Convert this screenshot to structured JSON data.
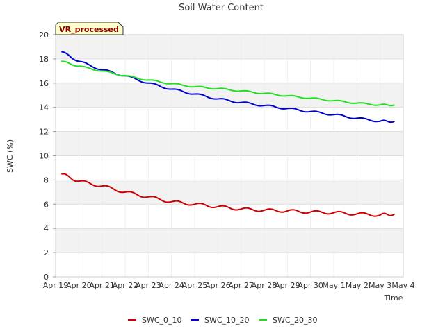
{
  "chart_data": {
    "type": "line",
    "title": "Soil Water Content",
    "xlabel": "Time",
    "ylabel": "SWC (%)",
    "badge": "VR_processed",
    "xlim": [
      "Apr 19",
      "May 4"
    ],
    "ylim": [
      0,
      20
    ],
    "yticks": [
      0,
      2,
      4,
      6,
      8,
      10,
      12,
      14,
      16,
      18,
      20
    ],
    "xticks": [
      "Apr 19",
      "Apr 20",
      "Apr 21",
      "Apr 22",
      "Apr 23",
      "Apr 24",
      "Apr 25",
      "Apr 26",
      "Apr 27",
      "Apr 28",
      "Apr 29",
      "Apr 30",
      "May 1",
      "May 2",
      "May 3",
      "May 4"
    ],
    "grid": true,
    "legend_position": "bottom",
    "x": [
      "Apr 19 06:00",
      "Apr 20 00:00",
      "Apr 21 00:00",
      "Apr 22 00:00",
      "Apr 23 00:00",
      "Apr 24 00:00",
      "Apr 25 00:00",
      "Apr 26 00:00",
      "Apr 27 00:00",
      "Apr 28 00:00",
      "Apr 29 00:00",
      "Apr 30 00:00",
      "May 1 00:00",
      "May 2 00:00",
      "May 3 00:00",
      "May 3 15:00"
    ],
    "series": [
      {
        "name": "SWC_0_10",
        "color": "#cc0000",
        "values": [
          8.5,
          7.9,
          7.5,
          7.0,
          6.6,
          6.2,
          6.0,
          5.8,
          5.6,
          5.5,
          5.45,
          5.35,
          5.3,
          5.2,
          5.1,
          5.2
        ]
      },
      {
        "name": "SWC_10_20",
        "color": "#0000cc",
        "values": [
          18.6,
          17.8,
          17.1,
          16.6,
          16.0,
          15.5,
          15.1,
          14.7,
          14.4,
          14.15,
          13.9,
          13.65,
          13.4,
          13.1,
          12.85,
          12.85
        ]
      },
      {
        "name": "SWC_20_30",
        "color": "#22dd22",
        "values": [
          17.8,
          17.4,
          17.0,
          16.6,
          16.25,
          15.95,
          15.7,
          15.55,
          15.35,
          15.15,
          14.95,
          14.75,
          14.55,
          14.35,
          14.2,
          14.2
        ]
      }
    ]
  }
}
